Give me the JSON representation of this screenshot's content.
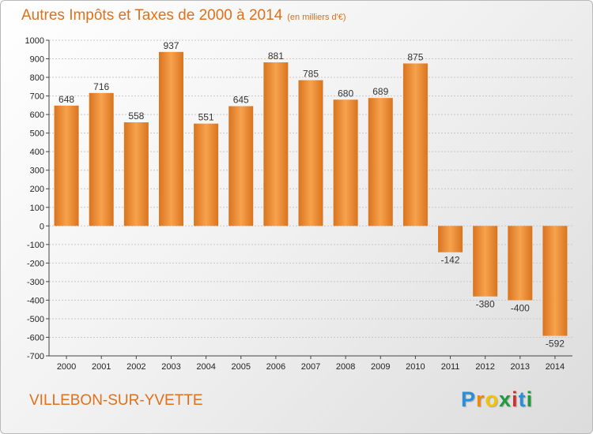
{
  "header": {
    "title": "Autres Impôts et Taxes de 2000 à 2014",
    "unit": "(en milliers d'€)"
  },
  "footer": {
    "city": "VILLEBON-SUR-YVETTE",
    "logo_letters": [
      "P",
      "r",
      "o",
      "x",
      "i",
      "t",
      "i"
    ],
    "logo_colors": [
      "#2a8fd6",
      "#f08a00",
      "#f5c400",
      "#1f9a3c",
      "#d62d2d",
      "#2a8fd6",
      "#1f9a3c"
    ]
  },
  "colors": {
    "bar_light": "#f7a24e",
    "bar_dark": "#d9741f",
    "grid": "#c8c8c8",
    "axis": "#444444"
  },
  "chart_data": {
    "type": "bar",
    "title": "Autres Impôts et Taxes de 2000 à 2014",
    "subtitle": "(en milliers d'€)",
    "xlabel": "",
    "ylabel": "",
    "categories": [
      "2000",
      "2001",
      "2002",
      "2003",
      "2004",
      "2005",
      "2006",
      "2007",
      "2008",
      "2009",
      "2010",
      "2011",
      "2012",
      "2013",
      "2014"
    ],
    "values": [
      648,
      716,
      558,
      937,
      551,
      645,
      881,
      785,
      680,
      689,
      875,
      -142,
      -380,
      -400,
      -592
    ],
    "ylim": [
      -700,
      1000
    ],
    "yticks": [
      1000,
      900,
      800,
      700,
      600,
      500,
      400,
      300,
      200,
      100,
      0,
      -100,
      -200,
      -300,
      -400,
      -500,
      -600,
      -700
    ],
    "grid": true,
    "legend": "none"
  }
}
